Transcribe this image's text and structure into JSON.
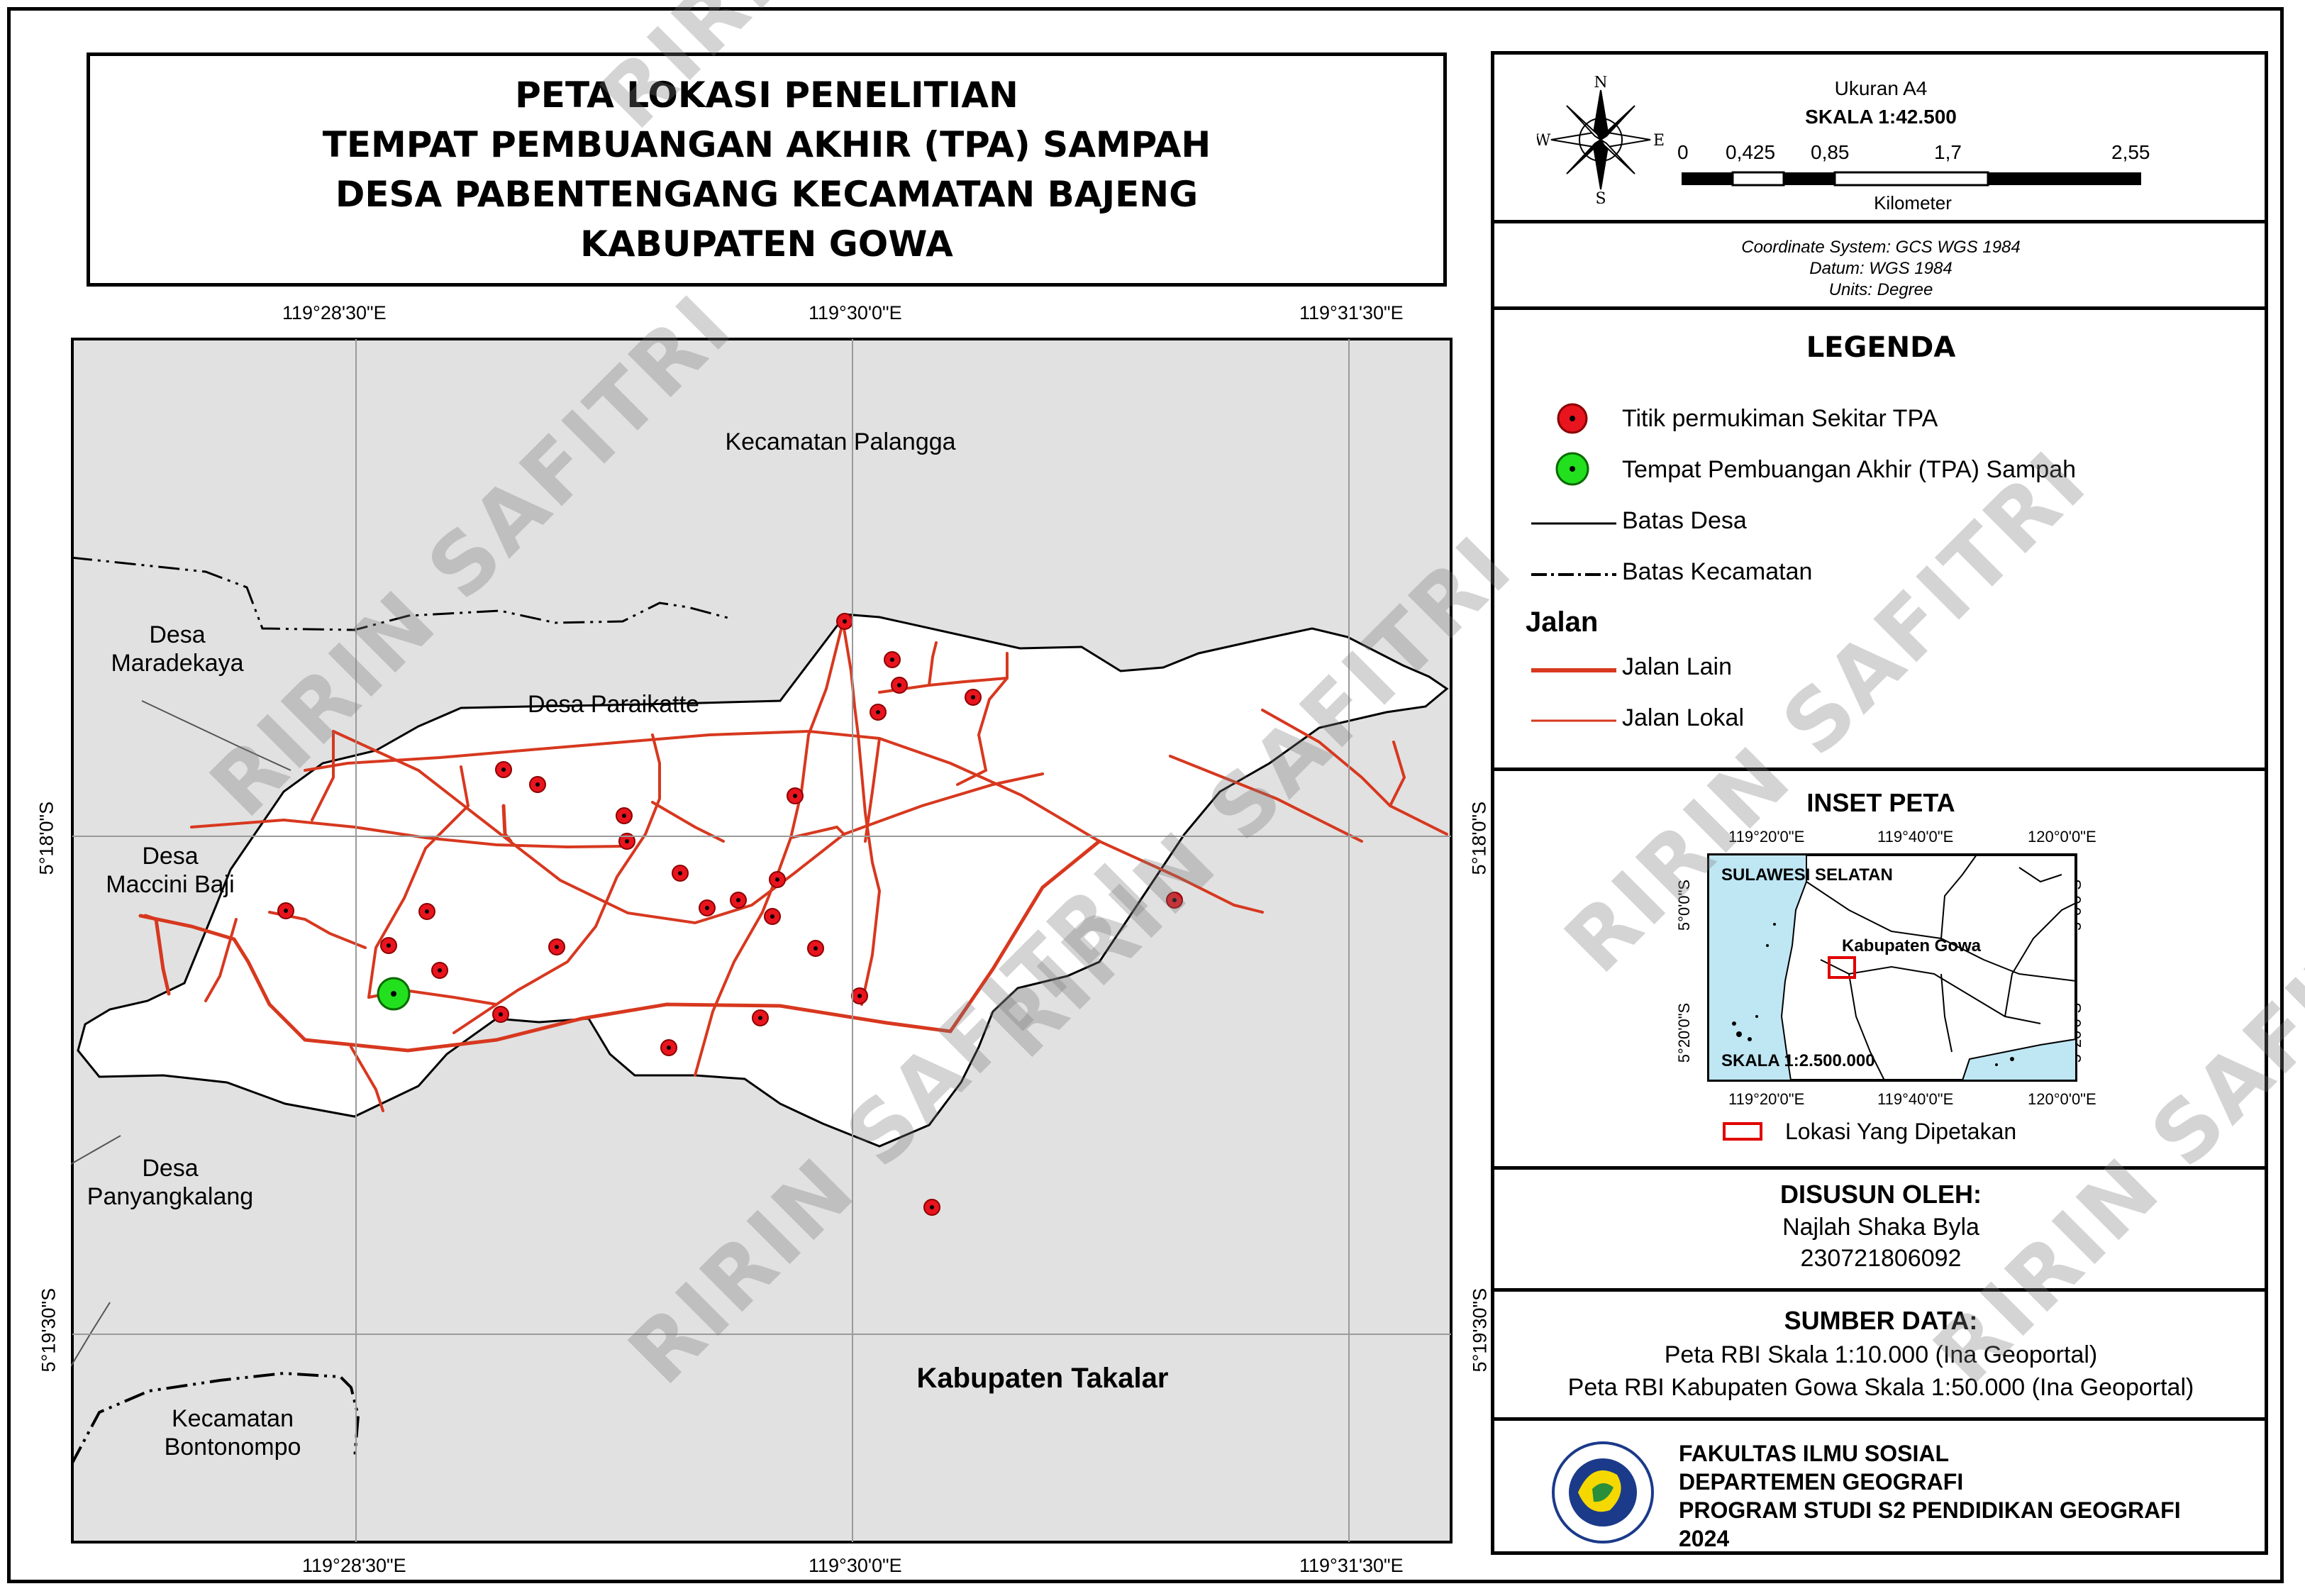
{
  "title": {
    "lines": [
      "PETA LOKASI PENELITIAN",
      "TEMPAT PEMBUANGAN AKHIR (TPA) SAMPAH",
      "DESA PABENTENGANG KECAMATAN BAJENG",
      "KABUPATEN GOWA"
    ]
  },
  "coords": {
    "top": [
      "119°28'30\"E",
      "119°30'0\"E",
      "119°31'30\"E"
    ],
    "bottom": [
      "119°28'30\"E",
      "119°30'0\"E",
      "119°31'30\"E"
    ],
    "left": [
      "5°18'0\"S",
      "5°19'30\"S"
    ],
    "right": [
      "5°18'0\"S",
      "5°19'30\"S"
    ]
  },
  "map_labels": {
    "palangga": "Kecamatan Palangga",
    "maradekaya_1": "Desa",
    "maradekaya_2": "Maradekaya",
    "paraikatte": "Desa Paraikatte",
    "maccini_1": "Desa",
    "maccini_2": "Maccini Baji",
    "panyangkalang_1": "Desa",
    "panyangkalang_2": "Panyangkalang",
    "takalar": "Kabupaten Takalar",
    "bontonompo_1": "Kecamatan",
    "bontonompo_2": "Bontonompo"
  },
  "colors": {
    "background_area": "#e1e1e1",
    "study_area": "#ffffff",
    "road": "#d7381f",
    "settlement_point": "#e8141e",
    "tpa_point": "#22e01e",
    "water": "#bfe6f3",
    "inset_box": "#e00000"
  },
  "header": {
    "size": "Ukuran A4",
    "scale": "SKALA  1:42.500",
    "compass": {
      "n": "N",
      "s": "S",
      "e": "E",
      "w": "W"
    },
    "scalebar_ticks": [
      "0",
      "0,425",
      "0,85",
      "1,7",
      "2,55"
    ],
    "scalebar_unit": "Kilometer"
  },
  "coordinate_system": {
    "system": "Coordinate System: GCS WGS 1984",
    "datum": "Datum: WGS 1984",
    "units": "Units: Degree"
  },
  "legend": {
    "title": "LEGENDA",
    "items": [
      {
        "label": "Titik permukiman Sekitar TPA",
        "icon": "red-point-icon"
      },
      {
        "label": "Tempat Pembuangan Akhir (TPA) Sampah",
        "icon": "green-point-icon"
      },
      {
        "label": "Batas Desa",
        "icon": "solid-line-icon"
      },
      {
        "label": "Batas Kecamatan",
        "icon": "dash-dot-line-icon"
      }
    ],
    "roads_heading": "Jalan",
    "roads": [
      {
        "label": "Jalan Lain",
        "icon": "thick-red-line-icon"
      },
      {
        "label": "Jalan Lokal",
        "icon": "thin-red-line-icon"
      }
    ]
  },
  "inset": {
    "title": "INSET PETA",
    "top_coords": [
      "119°20'0\"E",
      "119°40'0\"E",
      "120°0'0\"E"
    ],
    "bottom_coords": [
      "119°20'0\"E",
      "119°40'0\"E",
      "120°0'0\"E"
    ],
    "left_coords": [
      "5°0'0\"S",
      "5°20'0\"S"
    ],
    "right_coords": [
      "5°0'0\"S",
      "5°20'0\"S"
    ],
    "region": "SULAWESI SELATAN",
    "regency": "Kabupaten Gowa",
    "scale": "SKALA  1:2.500.000",
    "legend_label": "Lokasi Yang Dipetakan"
  },
  "author": {
    "heading": "DISUSUN OLEH:",
    "name": "Najlah Shaka Byla",
    "id": "230721806092"
  },
  "source": {
    "heading": "SUMBER DATA:",
    "line1": "Peta RBI Skala 1:10.000 (Ina Geoportal)",
    "line2": "Peta RBI Kabupaten Gowa Skala 1:50.000 (Ina Geoportal)"
  },
  "institution": {
    "line1": "FAKULTAS ILMU SOSIAL",
    "line2": "DEPARTEMEN GEOGRAFI",
    "line3": "PROGRAM STUDI S2 PENDIDIKAN GEOGRAFI",
    "line4": "2024",
    "logo_icon": "university-logo-icon"
  },
  "watermark": "RIRIN SAFITRI"
}
